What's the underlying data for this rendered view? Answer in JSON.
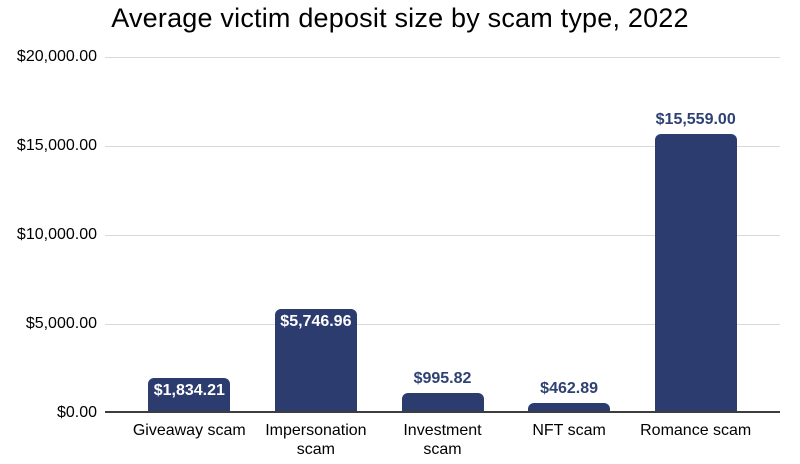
{
  "colors": {
    "bar": "#2c3c6e",
    "value_label_inside": "#ffffff",
    "value_label_outside": "#2e4173",
    "gridline": "#d9d9d9",
    "axis_line": "#3d3d3d",
    "text": "#000000"
  },
  "chart_data": {
    "type": "bar",
    "title": "Average victim deposit size by scam type, 2022",
    "categories": [
      "Giveaway scam",
      "Impersonation scam",
      "Investment scam",
      "NFT scam",
      "Romance scam"
    ],
    "values": [
      1834.21,
      5746.96,
      995.82,
      462.89,
      15559.0
    ],
    "value_labels": [
      "$1,834.21",
      "$5,746.96",
      "$995.82",
      "$462.89",
      "$15,559.00"
    ],
    "value_label_positions": [
      "inside",
      "inside",
      "above",
      "above",
      "above"
    ],
    "xlabel": "",
    "ylabel": "",
    "ylim": [
      0,
      20000
    ],
    "yticks": [
      {
        "value": 0,
        "label": "$0.00"
      },
      {
        "value": 5000,
        "label": "$5,000.00"
      },
      {
        "value": 10000,
        "label": "$10,000.00"
      },
      {
        "value": 15000,
        "label": "$15,000.00"
      },
      {
        "value": 20000,
        "label": "$20,000.00"
      }
    ],
    "grid": true,
    "legend": "none"
  }
}
